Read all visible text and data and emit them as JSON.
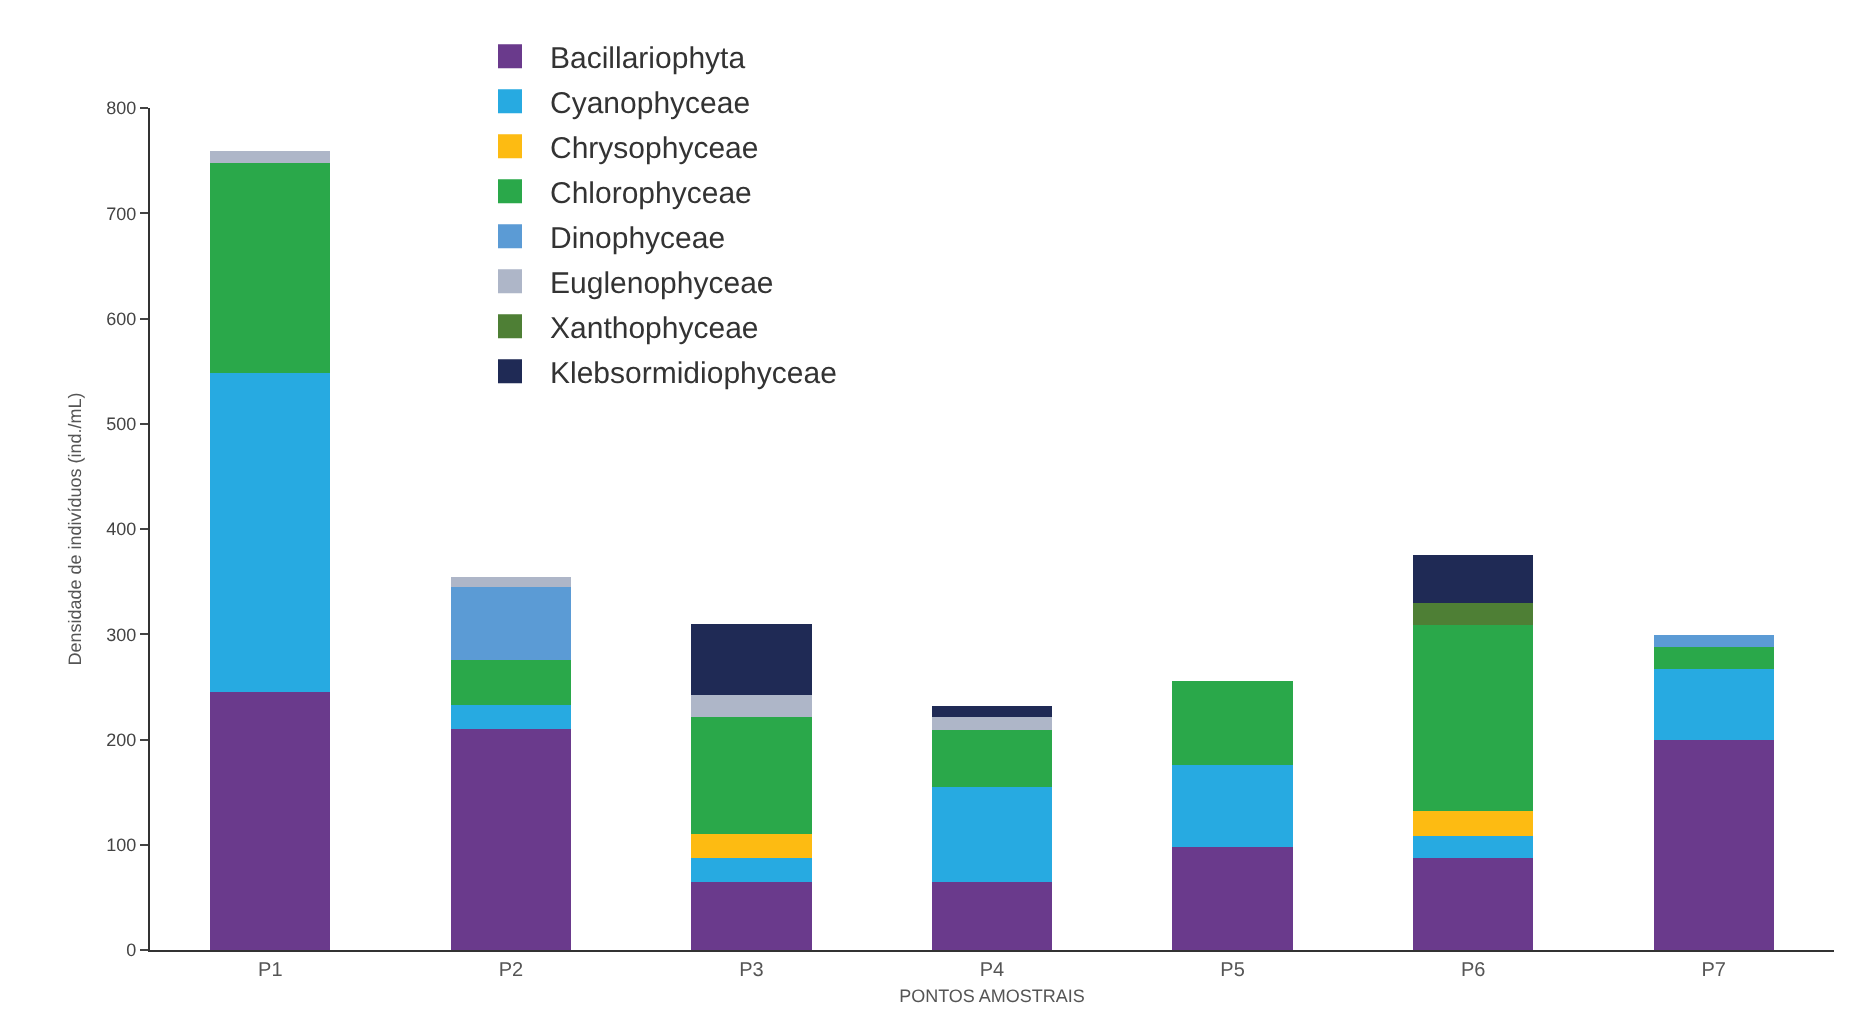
{
  "chart_data": {
    "type": "bar",
    "stacked": true,
    "xlabel": "PONTOS AMOSTRAIS",
    "ylabel": "Densidade de indivíduos (ind./mL)",
    "categories": [
      "P1",
      "P2",
      "P3",
      "P4",
      "P5",
      "P6",
      "P7"
    ],
    "ylim": [
      0,
      800
    ],
    "yticks": [
      0,
      100,
      200,
      300,
      400,
      500,
      600,
      700,
      800
    ],
    "grid": false,
    "legend": "top",
    "series": [
      {
        "name": "Bacillariophyta",
        "color": "#6a3a8c",
        "values": [
          245,
          210,
          65,
          65,
          98,
          87,
          200
        ]
      },
      {
        "name": "Cyanophyceae",
        "color": "#27aae1",
        "values": [
          303,
          23,
          22,
          90,
          78,
          21,
          67
        ]
      },
      {
        "name": "Chrysophyceae",
        "color": "#fdbb12",
        "values": [
          0,
          0,
          23,
          0,
          0,
          24,
          0
        ]
      },
      {
        "name": "Chlorophyceae",
        "color": "#2aa84a",
        "values": [
          200,
          43,
          111,
          54,
          80,
          177,
          21
        ]
      },
      {
        "name": "Dinophyceae",
        "color": "#5b9bd5",
        "values": [
          0,
          69,
          0,
          0,
          0,
          0,
          11
        ]
      },
      {
        "name": "Euglenophyceae",
        "color": "#aeb6c8",
        "values": [
          11,
          9,
          21,
          12,
          0,
          0,
          0
        ]
      },
      {
        "name": "Xanthophyceae",
        "color": "#4e7f35",
        "values": [
          0,
          0,
          0,
          0,
          0,
          21,
          0
        ]
      },
      {
        "name": "Klebsormidiophyceae",
        "color": "#1f2a55",
        "values": [
          0,
          0,
          68,
          11,
          0,
          45,
          0
        ]
      }
    ]
  }
}
